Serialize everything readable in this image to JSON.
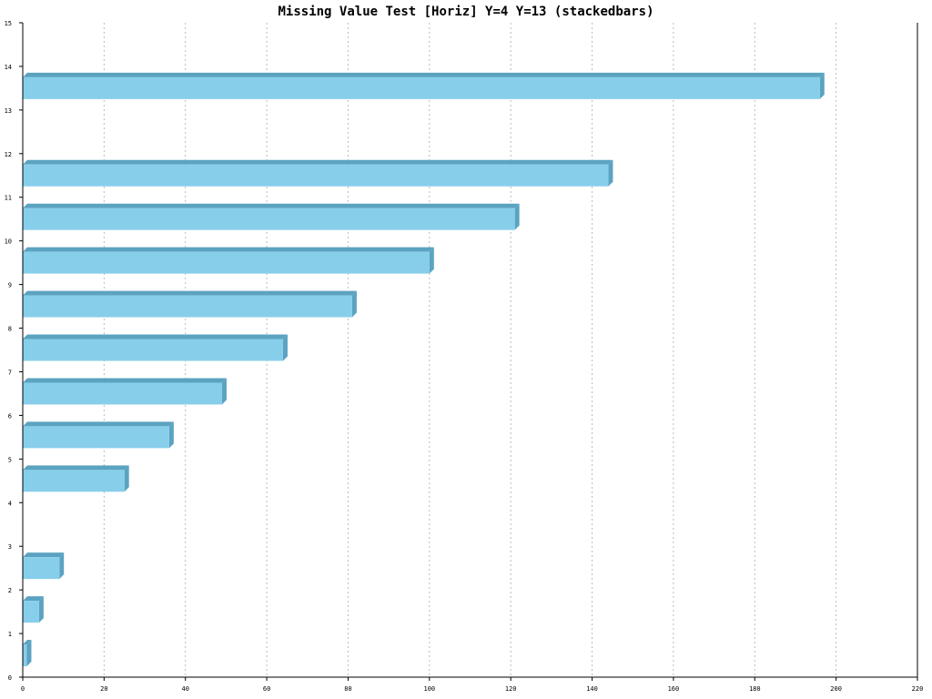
{
  "chart_data": {
    "type": "bar",
    "orientation": "horizontal",
    "stacked": true,
    "title": "Missing Value Test [Horiz] Y=4 Y=13 (stackedbars)",
    "xlabel": "",
    "ylabel": "",
    "xlim": [
      0,
      220
    ],
    "ylim": [
      0,
      15
    ],
    "x_ticks": [
      0,
      20,
      40,
      60,
      80,
      100,
      120,
      140,
      160,
      180,
      200,
      220
    ],
    "y_ticks": [
      0,
      1,
      2,
      3,
      4,
      5,
      6,
      7,
      8,
      9,
      10,
      11,
      12,
      13,
      14,
      15
    ],
    "categories": [
      1,
      2,
      3,
      4,
      5,
      6,
      7,
      8,
      9,
      10,
      11,
      12,
      13,
      14
    ],
    "series": [
      {
        "values": [
          1,
          4,
          9,
          null,
          25,
          36,
          49,
          64,
          81,
          100,
          121,
          144,
          null,
          196
        ]
      }
    ],
    "grid": {
      "x": true,
      "y": false
    },
    "colors": {
      "bar_face": "#87ceeb",
      "bar_side": "#5ba3c1",
      "grid": "#bbbbbb",
      "axis": "#000000"
    }
  }
}
